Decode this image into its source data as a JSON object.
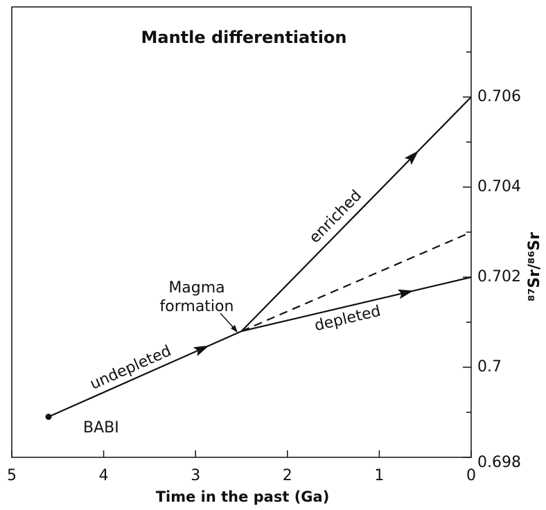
{
  "chart_data": {
    "type": "line",
    "title": "Mantle differentiation",
    "x_label": "Time in the past (Ga)",
    "y_label": "⁸⁷Sr/⁸⁶Sr",
    "xlim": [
      5,
      0
    ],
    "xticks": [
      5,
      4,
      3,
      2,
      1,
      0
    ],
    "ylim": [
      0.698,
      0.708
    ],
    "yticks": [
      0.698,
      0.7,
      0.702,
      0.704,
      0.706
    ],
    "y_minor_ticks": [
      0.699,
      0.701,
      0.703,
      0.705,
      0.707
    ],
    "series": [
      {
        "name": "undepleted",
        "color": "#111111",
        "x": [
          4.6,
          2.5
        ],
        "values": [
          0.6989,
          0.7008
        ]
      },
      {
        "name": "enriched",
        "color": "#111111",
        "x": [
          2.5,
          0
        ],
        "values": [
          0.7008,
          0.706
        ]
      },
      {
        "name": "depleted",
        "color": "#111111",
        "x": [
          2.5,
          0
        ],
        "values": [
          0.7008,
          0.702
        ]
      },
      {
        "color": "#111111",
        "dashed": true,
        "x": [
          2.5,
          0
        ],
        "values": [
          0.7008,
          0.703
        ]
      }
    ],
    "annotations": {
      "start_point": "BABI",
      "magma": [
        "Magma",
        "formation"
      ]
    }
  }
}
